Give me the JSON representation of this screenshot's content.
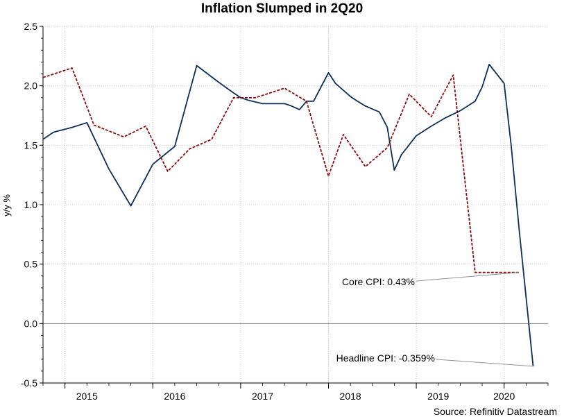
{
  "chart_data": {
    "type": "line",
    "title": "Inflation Slumped in 2Q20",
    "ylabel": "y/y %",
    "xlabel": "",
    "ylim": [
      -0.5,
      2.5
    ],
    "yticks": [
      -0.5,
      0.0,
      0.5,
      1.0,
      1.5,
      2.0,
      2.5
    ],
    "ytick_labels": [
      "-0.5",
      "0.0",
      "0.5",
      "1.0",
      "1.5",
      "2.0",
      "2.5"
    ],
    "x_tick_labels": [
      "2015",
      "2016",
      "2017",
      "2018",
      "2019",
      "2020"
    ],
    "x_tick_positions": [
      2015.25,
      2016.25,
      2017.25,
      2018.25,
      2019.25,
      2020.0
    ],
    "xlim": [
      2014.75,
      2020.5
    ],
    "grid": true,
    "legend": "none",
    "x": [
      2014.75,
      2015.0,
      2015.25,
      2015.5,
      2015.75,
      2016.0,
      2016.25,
      2016.5,
      2016.75,
      2017.0,
      2017.25,
      2017.5,
      2017.75,
      2018.0,
      2018.25,
      2018.5,
      2018.75,
      2019.0,
      2019.25,
      2019.5,
      2019.75,
      2020.0,
      2020.25
    ],
    "series": [
      {
        "color": "#0b2d5b",
        "style": "solid",
        "x": [
          2014.75,
          2014.87,
          2015.08,
          2015.25,
          2015.5,
          2015.75,
          2016.0,
          2016.25,
          2016.5,
          2016.75,
          2016.92,
          2017.0,
          2017.08,
          2017.25,
          2017.5,
          2017.58,
          2017.67,
          2017.75,
          2017.83,
          2018.0,
          2018.08,
          2018.25,
          2018.33,
          2018.42,
          2018.58,
          2018.67,
          2018.75,
          2018.83,
          2019.0,
          2019.17,
          2019.33,
          2019.5,
          2019.67,
          2019.75,
          2019.83,
          2020.0,
          2020.08,
          2020.17,
          2020.33
        ],
        "values": [
          1.55,
          1.61,
          1.65,
          1.69,
          1.3,
          0.99,
          1.34,
          1.49,
          2.17,
          2.03,
          1.94,
          1.9,
          1.88,
          1.85,
          1.85,
          1.83,
          1.8,
          1.87,
          1.87,
          2.11,
          2.02,
          1.91,
          1.87,
          1.83,
          1.78,
          1.65,
          1.29,
          1.42,
          1.58,
          1.66,
          1.73,
          1.79,
          1.87,
          1.99,
          2.18,
          2.02,
          1.5,
          0.8,
          -0.359
        ]
      },
      {
        "color": "#8b0a0a",
        "style": "dashed",
        "x": [
          2014.75,
          2015.08,
          2015.33,
          2015.67,
          2015.92,
          2016.17,
          2016.42,
          2016.67,
          2016.92,
          2017.17,
          2017.5,
          2017.75,
          2018.0,
          2018.17,
          2018.42,
          2018.67,
          2018.92,
          2019.17,
          2019.42,
          2019.67,
          2019.92,
          2020.17
        ],
        "values": [
          2.07,
          2.15,
          1.67,
          1.57,
          1.66,
          1.28,
          1.47,
          1.55,
          1.9,
          1.9,
          1.98,
          1.87,
          1.24,
          1.59,
          1.32,
          1.48,
          1.93,
          1.74,
          2.09,
          0.43,
          0.43,
          0.43
        ]
      }
    ],
    "annotations": [
      {
        "text": "Core CPI: 0.43%",
        "x": 2020.17,
        "y": 0.43
      },
      {
        "text": "Headline CPI: -0.359%",
        "x": 2020.33,
        "y": -0.359
      }
    ],
    "source": "Source: Refinitiv Datastream"
  }
}
